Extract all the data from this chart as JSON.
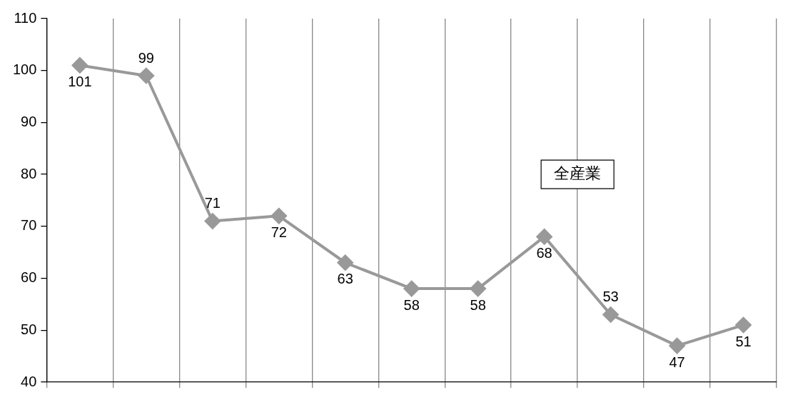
{
  "chart_data": {
    "type": "line",
    "categories": [
      null,
      null,
      null,
      null,
      null,
      null,
      null,
      null,
      null,
      null,
      null
    ],
    "series": [
      {
        "name": "全産業",
        "color": "#999999",
        "values": [
          101,
          99,
          71,
          72,
          63,
          58,
          58,
          68,
          53,
          47,
          51
        ]
      }
    ],
    "ylim": [
      40,
      110
    ],
    "yticks": [
      40,
      50,
      60,
      70,
      80,
      90,
      100,
      110
    ],
    "grid": "x",
    "marker": "diamond",
    "line_style": "solid",
    "data_labels": true
  }
}
